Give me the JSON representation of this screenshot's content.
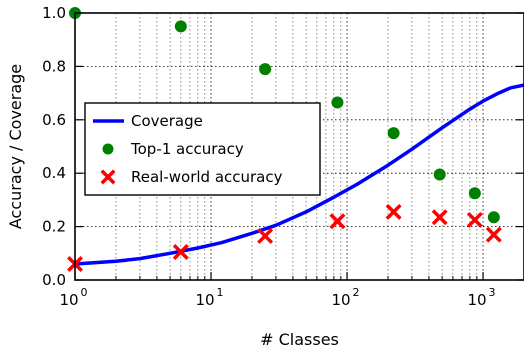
{
  "chart_data": {
    "type": "scatter",
    "xlabel": "# Classes",
    "ylabel": "Accuracy / Coverage",
    "xscale": "log",
    "xlim": [
      1,
      2000
    ],
    "ylim": [
      0,
      1.0
    ],
    "grid": true,
    "legend_position": "center-left",
    "x_ticks": [
      {
        "value": 1,
        "base": "10",
        "exp": "0"
      },
      {
        "value": 10,
        "base": "10",
        "exp": "1"
      },
      {
        "value": 100,
        "base": "10",
        "exp": "2"
      },
      {
        "value": 1000,
        "base": "10",
        "exp": "3"
      }
    ],
    "y_ticks": [
      {
        "value": 0.0,
        "label": "0.0"
      },
      {
        "value": 0.2,
        "label": "0.2"
      },
      {
        "value": 0.4,
        "label": "0.4"
      },
      {
        "value": 0.6,
        "label": "0.6"
      },
      {
        "value": 0.8,
        "label": "0.8"
      },
      {
        "value": 1.0,
        "label": "1.0"
      }
    ],
    "series": [
      {
        "name": "Coverage",
        "kind": "line",
        "color": "#0000ff",
        "x": [
          1,
          2,
          3,
          5,
          8,
          12,
          20,
          30,
          50,
          80,
          120,
          200,
          300,
          500,
          800,
          1000,
          1300,
          1600,
          2000
        ],
        "y": [
          0.06,
          0.07,
          0.08,
          0.1,
          0.12,
          0.14,
          0.175,
          0.205,
          0.255,
          0.31,
          0.36,
          0.43,
          0.49,
          0.57,
          0.64,
          0.67,
          0.7,
          0.72,
          0.73
        ]
      },
      {
        "name": "Top-1 accuracy",
        "kind": "scatter",
        "marker": "circle",
        "color": "#008000",
        "x": [
          1,
          6,
          25,
          85,
          220,
          480,
          870,
          1200
        ],
        "y": [
          1.0,
          0.95,
          0.79,
          0.665,
          0.55,
          0.395,
          0.325,
          0.235
        ]
      },
      {
        "name": "Real-world accuracy",
        "kind": "scatter",
        "marker": "x",
        "color": "#ff0000",
        "x": [
          1,
          6,
          25,
          85,
          220,
          480,
          870,
          1200
        ],
        "y": [
          0.06,
          0.105,
          0.165,
          0.22,
          0.255,
          0.235,
          0.225,
          0.17
        ]
      }
    ]
  }
}
